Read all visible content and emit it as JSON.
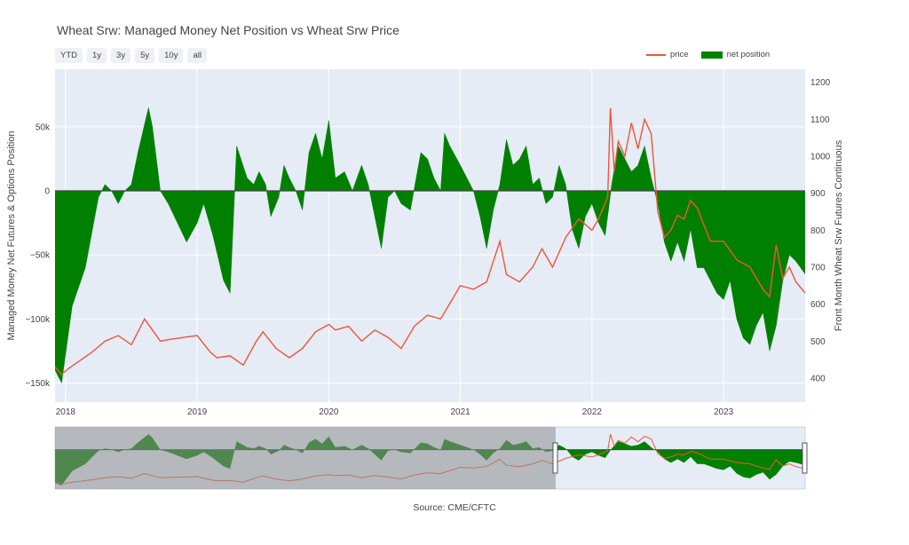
{
  "title": "Wheat Srw: Managed Money Net Position vs Wheat Srw Price",
  "source": "Source: CME/CFTC",
  "range_selector": [
    "YTD",
    "1y",
    "3y",
    "5y",
    "10y",
    "all"
  ],
  "colors": {
    "price": "#ef553b",
    "net_position": "#008000",
    "plot_bg": "#e5ecf6",
    "slider_mask": "#8e8e8e"
  },
  "chart_data": {
    "type": "area",
    "title": "Wheat Srw: Managed Money Net Position vs Wheat Srw Price",
    "x_ticks": [
      "2018",
      "2019",
      "2020",
      "2021",
      "2022",
      "2023"
    ],
    "x_range": [
      2017.92,
      2023.62
    ],
    "y_left": {
      "label": "Managed Money Net Futures & Options Position",
      "range": [
        -165000,
        95000
      ],
      "ticks": [
        -150000,
        -100000,
        -50000,
        0,
        50000
      ],
      "tick_labels": [
        "−150k",
        "−100k",
        "−50k",
        "0",
        "50k"
      ]
    },
    "y_right": {
      "label": "Front Month Wheat Srw Futures Continuous",
      "range": [
        335,
        1235
      ],
      "ticks": [
        400,
        500,
        600,
        700,
        800,
        900,
        1000,
        1100,
        1200
      ],
      "tick_labels": [
        "400",
        "500",
        "600",
        "700",
        "800",
        "900",
        "1000",
        "1100",
        "1200"
      ]
    },
    "legend": "top-right",
    "series": [
      {
        "name": "price",
        "axis": "right",
        "x": [
          2017.92,
          2017.97,
          2018.02,
          2018.1,
          2018.2,
          2018.3,
          2018.4,
          2018.5,
          2018.6,
          2018.66,
          2018.72,
          2018.8,
          2018.9,
          2019.0,
          2019.1,
          2019.15,
          2019.25,
          2019.35,
          2019.45,
          2019.5,
          2019.6,
          2019.7,
          2019.8,
          2019.9,
          2020.0,
          2020.05,
          2020.15,
          2020.25,
          2020.35,
          2020.45,
          2020.55,
          2020.65,
          2020.75,
          2020.85,
          2020.95,
          2021.0,
          2021.1,
          2021.2,
          2021.3,
          2021.35,
          2021.45,
          2021.55,
          2021.62,
          2021.7,
          2021.8,
          2021.9,
          2022.0,
          2022.05,
          2022.12,
          2022.14,
          2022.17,
          2022.2,
          2022.25,
          2022.3,
          2022.35,
          2022.4,
          2022.45,
          2022.5,
          2022.55,
          2022.6,
          2022.65,
          2022.7,
          2022.75,
          2022.8,
          2022.9,
          2023.0,
          2023.1,
          2023.2,
          2023.3,
          2023.35,
          2023.4,
          2023.45,
          2023.5,
          2023.55,
          2023.62
        ],
        "values": [
          430,
          410,
          425,
          445,
          470,
          500,
          515,
          490,
          560,
          530,
          500,
          505,
          510,
          515,
          470,
          455,
          460,
          435,
          500,
          525,
          480,
          455,
          480,
          525,
          545,
          530,
          540,
          500,
          530,
          510,
          480,
          540,
          570,
          560,
          620,
          650,
          640,
          660,
          770,
          680,
          660,
          700,
          750,
          700,
          780,
          830,
          800,
          830,
          890,
          1130,
          960,
          1040,
          1000,
          1090,
          1020,
          1100,
          1060,
          850,
          780,
          800,
          840,
          830,
          880,
          860,
          770,
          770,
          720,
          700,
          640,
          620,
          760,
          670,
          700,
          660,
          630
        ]
      },
      {
        "name": "net position",
        "axis": "left",
        "x": [
          2017.92,
          2017.97,
          2018.05,
          2018.15,
          2018.25,
          2018.3,
          2018.35,
          2018.4,
          2018.45,
          2018.5,
          2018.55,
          2018.63,
          2018.66,
          2018.72,
          2018.78,
          2018.85,
          2018.92,
          2019.0,
          2019.05,
          2019.12,
          2019.2,
          2019.25,
          2019.3,
          2019.38,
          2019.43,
          2019.47,
          2019.52,
          2019.56,
          2019.62,
          2019.66,
          2019.7,
          2019.75,
          2019.8,
          2019.85,
          2019.9,
          2019.95,
          2020.0,
          2020.05,
          2020.12,
          2020.18,
          2020.25,
          2020.3,
          2020.35,
          2020.4,
          2020.45,
          2020.5,
          2020.55,
          2020.62,
          2020.7,
          2020.75,
          2020.8,
          2020.85,
          2020.88,
          2020.92,
          2021.0,
          2021.05,
          2021.1,
          2021.15,
          2021.2,
          2021.25,
          2021.3,
          2021.35,
          2021.4,
          2021.45,
          2021.5,
          2021.55,
          2021.6,
          2021.65,
          2021.7,
          2021.75,
          2021.8,
          2021.85,
          2021.9,
          2021.95,
          2022.0,
          2022.05,
          2022.1,
          2022.15,
          2022.2,
          2022.25,
          2022.3,
          2022.35,
          2022.4,
          2022.45,
          2022.5,
          2022.55,
          2022.6,
          2022.65,
          2022.7,
          2022.75,
          2022.8,
          2022.85,
          2022.9,
          2022.95,
          2023.0,
          2023.05,
          2023.1,
          2023.15,
          2023.2,
          2023.25,
          2023.3,
          2023.35,
          2023.4,
          2023.45,
          2023.5,
          2023.55,
          2023.62
        ],
        "values": [
          -140000,
          -150000,
          -90000,
          -60000,
          -5000,
          5000,
          0,
          -10000,
          0,
          5000,
          30000,
          65000,
          50000,
          0,
          -10000,
          -25000,
          -40000,
          -25000,
          -10000,
          -35000,
          -70000,
          -80000,
          35000,
          10000,
          5000,
          15000,
          5000,
          -20000,
          -5000,
          20000,
          10000,
          0,
          -15000,
          30000,
          45000,
          25000,
          55000,
          10000,
          15000,
          0,
          20000,
          5000,
          -20000,
          -45000,
          -5000,
          0,
          -10000,
          -15000,
          30000,
          25000,
          10000,
          0,
          45000,
          35000,
          20000,
          10000,
          0,
          -20000,
          -45000,
          -15000,
          5000,
          40000,
          20000,
          25000,
          35000,
          5000,
          10000,
          -10000,
          -5000,
          20000,
          5000,
          -30000,
          -45000,
          -20000,
          -10000,
          -25000,
          -35000,
          5000,
          35000,
          25000,
          15000,
          20000,
          35000,
          10000,
          -10000,
          -40000,
          -55000,
          -40000,
          -55000,
          -30000,
          -60000,
          -60000,
          -70000,
          -80000,
          -85000,
          -70000,
          -100000,
          -115000,
          -120000,
          -105000,
          -95000,
          -125000,
          -105000,
          -70000,
          -50000,
          -55000,
          -65000
        ]
      }
    ]
  }
}
